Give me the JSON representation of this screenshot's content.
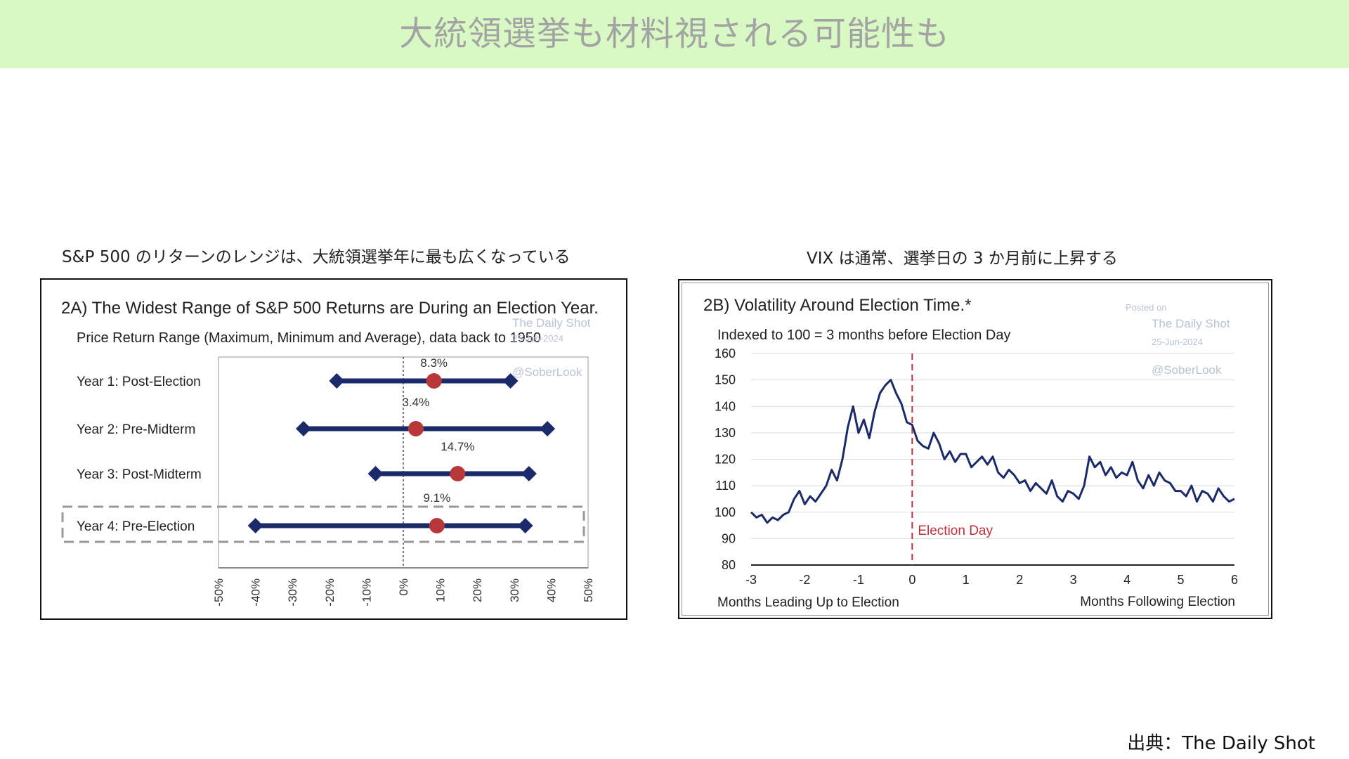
{
  "header": {
    "title": "大統領選挙も材料視される可能性も"
  },
  "captions": {
    "left": "S&P 500 のリターンのレンジは、大統領選挙年に最も広くなっている",
    "right": "VIX は通常、選挙日の 3 か月前に上昇する"
  },
  "watermark": {
    "posted_on": "Posted on",
    "site": "The Daily Shot",
    "date": "25-Jun-2024",
    "handle": "@SoberLook"
  },
  "footer": {
    "source": "出典：The Daily Shot"
  },
  "colors": {
    "navy": "#1b2a6b",
    "red_dot": "#b8383a",
    "election_line": "#c0303a",
    "banner_bg": "#d9f9c4",
    "banner_text": "#a3a3a3"
  },
  "chart_data": [
    {
      "type": "range",
      "title": "2A)  The Widest Range of S&P 500 Returns are During an Election Year.",
      "subtitle": "Price Return Range (Maximum, Minimum and Average), data back to 1950",
      "xlim": [
        -50,
        50
      ],
      "x_ticks": [
        "-50%",
        "-40%",
        "-30%",
        "-20%",
        "-10%",
        "0%",
        "10%",
        "20%",
        "30%",
        "40%",
        "50%"
      ],
      "highlighted_category": "Year 4: Pre-Election",
      "categories": [
        "Year 1: Post-Election",
        "Year 2: Pre-Midterm",
        "Year 3: Post-Midterm",
        "Year 4: Pre-Election"
      ],
      "min": [
        -18,
        -27,
        -7.5,
        -40
      ],
      "max": [
        29,
        39,
        34,
        33
      ],
      "avg": [
        8.3,
        3.4,
        14.7,
        9.1
      ],
      "avg_labels": [
        "8.3%",
        "3.4%",
        "14.7%",
        "9.1%"
      ]
    },
    {
      "type": "line",
      "title": "2B)  Volatility Around Election Time.*",
      "subtitle": "Indexed to 100 = 3 months before Election Day",
      "ylim": [
        80,
        160
      ],
      "y_ticks": [
        "160",
        "150",
        "140",
        "130",
        "120",
        "110",
        "100",
        "90",
        "80"
      ],
      "xlim": [
        -3,
        6
      ],
      "x_ticks": [
        "-3",
        "-2",
        "-1",
        "0",
        "1",
        "2",
        "3",
        "4",
        "5",
        "6"
      ],
      "xlabel_left": "Months Leading Up to Election",
      "xlabel_right": "Months Following Election",
      "annotation": "Election Day",
      "annotation_x": 0,
      "series": [
        {
          "x": [
            -3.0,
            -2.9,
            -2.8,
            -2.7,
            -2.6,
            -2.5,
            -2.4,
            -2.3,
            -2.2,
            -2.1,
            -2.0,
            -1.9,
            -1.8,
            -1.7,
            -1.6,
            -1.5,
            -1.4,
            -1.3,
            -1.2,
            -1.1,
            -1.0,
            -0.9,
            -0.8,
            -0.7,
            -0.6,
            -0.5,
            -0.4,
            -0.3,
            -0.2,
            -0.1,
            0.0,
            0.1,
            0.2,
            0.3,
            0.4,
            0.5,
            0.6,
            0.7,
            0.8,
            0.9,
            1.0,
            1.1,
            1.2,
            1.3,
            1.4,
            1.5,
            1.6,
            1.7,
            1.8,
            1.9,
            2.0,
            2.1,
            2.2,
            2.3,
            2.4,
            2.5,
            2.6,
            2.7,
            2.8,
            2.9,
            3.0,
            3.1,
            3.2,
            3.3,
            3.4,
            3.5,
            3.6,
            3.7,
            3.8,
            3.9,
            4.0,
            4.1,
            4.2,
            4.3,
            4.4,
            4.5,
            4.6,
            4.7,
            4.8,
            4.9,
            5.0,
            5.1,
            5.2,
            5.3,
            5.4,
            5.5,
            5.6,
            5.7,
            5.8,
            5.9,
            6.0
          ],
          "values": [
            100,
            98,
            99,
            96,
            98,
            97,
            99,
            100,
            105,
            108,
            103,
            106,
            104,
            107,
            110,
            116,
            112,
            120,
            132,
            140,
            130,
            135,
            128,
            138,
            145,
            148,
            150,
            145,
            141,
            134,
            133,
            127,
            125,
            124,
            130,
            126,
            120,
            123,
            119,
            122,
            122,
            117,
            119,
            121,
            118,
            121,
            115,
            113,
            116,
            114,
            111,
            112,
            108,
            111,
            109,
            107,
            112,
            106,
            104,
            108,
            107,
            105,
            110,
            121,
            117,
            119,
            114,
            117,
            113,
            115,
            114,
            119,
            112,
            109,
            114,
            110,
            115,
            112,
            111,
            108,
            108,
            106,
            110,
            104,
            108,
            107,
            104,
            109,
            106,
            104,
            105
          ]
        }
      ]
    }
  ]
}
